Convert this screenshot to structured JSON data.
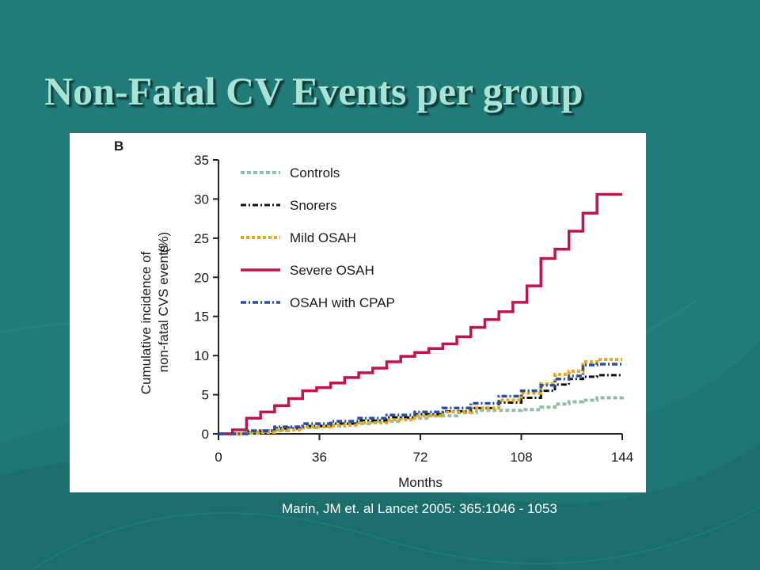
{
  "slide": {
    "title": "Non-Fatal CV Events per group",
    "citation": "Marin, JM et. al Lancet 2005: 365:1046 - 1053"
  },
  "colors": {
    "background": "#1f7573",
    "title": "#a9e3d6",
    "citation": "#ffffff"
  },
  "chart_data": {
    "type": "line",
    "panel_label": "B",
    "xlabel": "Months",
    "ylabel_line1": "Cumulative incidence of",
    "ylabel_line2": "non-fatal CVS events",
    "ylabel_unit": "(%)",
    "xlim": [
      0,
      144
    ],
    "ylim": [
      0,
      35
    ],
    "xticks": [
      0,
      36,
      72,
      108,
      144
    ],
    "yticks": [
      0,
      5,
      10,
      15,
      20,
      25,
      30,
      35
    ],
    "grid": false,
    "legend_position": "top-left",
    "series": [
      {
        "name": "Controls",
        "color": "#8fbfa2",
        "dash": "5,3",
        "width": 4,
        "x": [
          0,
          8,
          15,
          25,
          35,
          45,
          55,
          65,
          75,
          85,
          92,
          100,
          108,
          115,
          120,
          125,
          130,
          135,
          144
        ],
        "y": [
          0,
          0.1,
          0.4,
          0.8,
          1.0,
          1.3,
          1.6,
          2.0,
          2.3,
          2.7,
          3.0,
          3.0,
          3.1,
          3.4,
          3.8,
          4.1,
          4.3,
          4.6,
          4.8
        ]
      },
      {
        "name": "Snorers",
        "color": "#111111",
        "dash": "7,3,2,3",
        "width": 3,
        "x": [
          0,
          10,
          20,
          30,
          40,
          50,
          60,
          70,
          80,
          90,
          100,
          108,
          115,
          120,
          125,
          130,
          135,
          144
        ],
        "y": [
          0,
          0.3,
          0.7,
          1.0,
          1.3,
          1.7,
          2.1,
          2.5,
          2.9,
          3.3,
          4.0,
          4.6,
          5.5,
          6.3,
          7.0,
          7.3,
          7.5,
          7.5
        ]
      },
      {
        "name": "Mild OSAH",
        "color": "#e8a817",
        "dash": "4,3",
        "width": 4,
        "x": [
          0,
          10,
          20,
          30,
          40,
          50,
          60,
          70,
          80,
          90,
          100,
          108,
          115,
          120,
          125,
          130,
          135,
          144
        ],
        "y": [
          0,
          0.2,
          0.5,
          0.9,
          1.1,
          1.4,
          1.8,
          2.3,
          2.8,
          3.3,
          4.3,
          5.2,
          6.4,
          7.6,
          8.0,
          9.2,
          9.5,
          9.5
        ]
      },
      {
        "name": "Severe OSAH",
        "color": "#c0144a",
        "dash": "",
        "width": 3.5,
        "x": [
          0,
          5,
          10,
          15,
          20,
          25,
          30,
          35,
          40,
          45,
          50,
          55,
          60,
          65,
          70,
          75,
          80,
          85,
          90,
          95,
          100,
          105,
          110,
          115,
          120,
          125,
          130,
          135,
          140,
          144
        ],
        "y": [
          0,
          0.5,
          2.0,
          2.8,
          3.6,
          4.5,
          5.5,
          5.9,
          6.5,
          7.2,
          7.8,
          8.4,
          9.2,
          9.9,
          10.4,
          10.9,
          11.5,
          12.4,
          13.6,
          14.6,
          15.6,
          16.8,
          18.9,
          22.4,
          23.6,
          25.9,
          28.2,
          30.6,
          30.6,
          30.6
        ]
      },
      {
        "name": "OSAH with CPAP",
        "color": "#2b4fa0",
        "dash": "7,3,2,3",
        "width": 3.5,
        "x": [
          0,
          10,
          20,
          30,
          40,
          50,
          60,
          70,
          80,
          90,
          100,
          108,
          115,
          120,
          125,
          130,
          135,
          144
        ],
        "y": [
          0,
          0.4,
          0.9,
          1.3,
          1.6,
          2.0,
          2.4,
          2.8,
          3.3,
          3.9,
          4.8,
          5.5,
          6.2,
          7.0,
          7.4,
          8.8,
          8.9,
          8.9
        ]
      }
    ]
  }
}
